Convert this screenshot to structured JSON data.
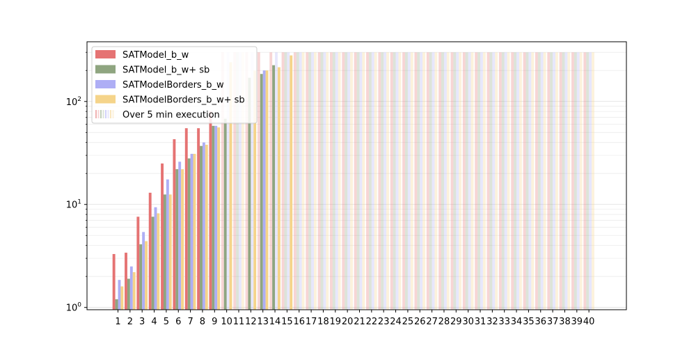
{
  "chart_data": {
    "type": "bar",
    "title": "",
    "xlabel": "",
    "ylabel": "",
    "y_scale": "log",
    "ylim": [
      0.95,
      380
    ],
    "grid": "y-minor-and-major",
    "legend_position": "top-left",
    "timeout_value": 300,
    "categories": [
      "1",
      "2",
      "3",
      "4",
      "5",
      "6",
      "7",
      "8",
      "9",
      "10",
      "11",
      "12",
      "13",
      "14",
      "15",
      "16",
      "17",
      "18",
      "19",
      "20",
      "21",
      "22",
      "23",
      "24",
      "25",
      "26",
      "27",
      "28",
      "29",
      "30",
      "31",
      "32",
      "33",
      "34",
      "35",
      "36",
      "37",
      "38",
      "39",
      "40"
    ],
    "y_ticks": [
      {
        "value": 1,
        "label": "10",
        "exp": "0"
      },
      {
        "value": 10,
        "label": "10",
        "exp": "1"
      },
      {
        "value": 100,
        "label": "10",
        "exp": "2"
      }
    ],
    "series": [
      {
        "name": "SATModel_b_w",
        "color": "#e57373",
        "values": [
          3.3,
          3.4,
          7.6,
          13,
          25,
          43,
          55,
          55,
          80,
          300,
          300,
          300,
          300,
          300,
          300,
          300,
          300,
          300,
          300,
          300,
          300,
          300,
          300,
          300,
          300,
          300,
          300,
          300,
          300,
          300,
          300,
          300,
          300,
          300,
          300,
          300,
          300,
          300,
          300,
          300
        ],
        "timeout": [
          false,
          false,
          false,
          false,
          false,
          false,
          false,
          false,
          false,
          true,
          true,
          true,
          true,
          true,
          true,
          true,
          true,
          true,
          true,
          true,
          true,
          true,
          true,
          true,
          true,
          true,
          true,
          true,
          true,
          true,
          true,
          true,
          true,
          true,
          true,
          true,
          true,
          true,
          true,
          true
        ]
      },
      {
        "name": "SATModel_b_w+ sb",
        "color": "#8fa580",
        "values": [
          1.2,
          1.9,
          4.1,
          7.6,
          12.5,
          22,
          28,
          37,
          58,
          68,
          300,
          170,
          185,
          225,
          300,
          300,
          300,
          300,
          300,
          300,
          300,
          300,
          300,
          300,
          300,
          300,
          300,
          300,
          300,
          300,
          300,
          300,
          300,
          300,
          300,
          300,
          300,
          300,
          300,
          300
        ],
        "timeout": [
          false,
          false,
          false,
          false,
          false,
          false,
          false,
          false,
          false,
          false,
          true,
          false,
          false,
          false,
          true,
          true,
          true,
          true,
          true,
          true,
          true,
          true,
          true,
          true,
          true,
          true,
          true,
          true,
          true,
          true,
          true,
          true,
          true,
          true,
          true,
          true,
          true,
          true,
          true,
          true
        ]
      },
      {
        "name": "SATModelBorders_b_w",
        "color": "#aeaef5",
        "values": [
          1.85,
          2.5,
          5.4,
          9.4,
          17.5,
          26,
          31,
          40,
          58,
          300,
          300,
          300,
          200,
          300,
          300,
          300,
          300,
          300,
          300,
          300,
          300,
          300,
          300,
          300,
          300,
          300,
          300,
          300,
          300,
          300,
          300,
          300,
          300,
          300,
          300,
          300,
          300,
          300,
          300,
          300
        ],
        "timeout": [
          false,
          false,
          false,
          false,
          false,
          false,
          false,
          false,
          false,
          true,
          true,
          true,
          false,
          true,
          true,
          true,
          true,
          true,
          true,
          true,
          true,
          true,
          true,
          true,
          true,
          true,
          true,
          true,
          true,
          true,
          true,
          true,
          true,
          true,
          true,
          true,
          true,
          true,
          true,
          true
        ]
      },
      {
        "name": "SATModelBorders_b_w+ sb",
        "color": "#f5d48a",
        "values": [
          1.6,
          2.2,
          4.4,
          8.2,
          12.5,
          22,
          31,
          38,
          56,
          240,
          300,
          200,
          200,
          215,
          280,
          300,
          300,
          300,
          300,
          300,
          300,
          300,
          300,
          300,
          300,
          300,
          300,
          300,
          300,
          300,
          300,
          300,
          300,
          300,
          300,
          300,
          300,
          300,
          300,
          300
        ],
        "timeout": [
          false,
          false,
          false,
          false,
          false,
          false,
          false,
          false,
          false,
          false,
          true,
          false,
          false,
          false,
          false,
          true,
          true,
          true,
          true,
          true,
          true,
          true,
          true,
          true,
          true,
          true,
          true,
          true,
          true,
          true,
          true,
          true,
          true,
          true,
          true,
          true,
          true,
          true,
          true,
          true
        ]
      }
    ],
    "legend": [
      {
        "label": "SATModel_b_w",
        "color": "#e57373",
        "style": "solid"
      },
      {
        "label": "SATModel_b_w+ sb",
        "color": "#8fa580",
        "style": "solid"
      },
      {
        "label": "SATModelBorders_b_w",
        "color": "#aeaef5",
        "style": "solid"
      },
      {
        "label": "SATModelBorders_b_w+ sb",
        "color": "#f5d48a",
        "style": "solid"
      },
      {
        "label": "Over 5 min execution",
        "colors": [
          "#e57373",
          "#8fa580",
          "#aeaef5",
          "#f5d48a"
        ],
        "style": "faded"
      }
    ]
  }
}
